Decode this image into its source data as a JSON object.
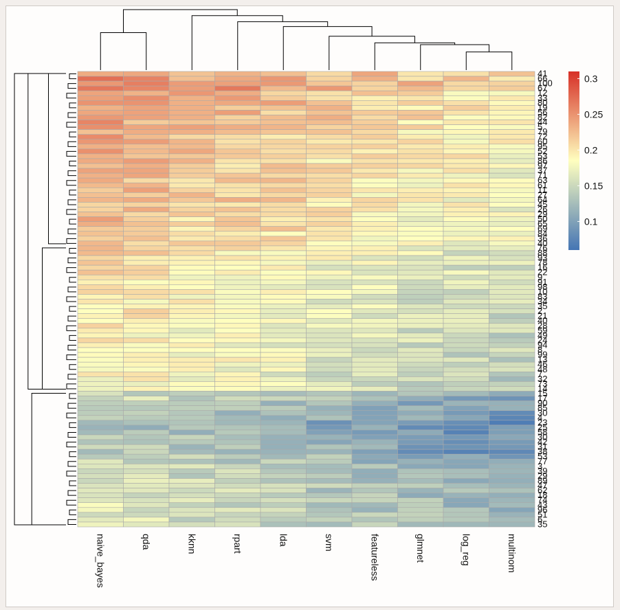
{
  "chart_data": {
    "type": "heatmap",
    "columns": [
      "naive_bayes",
      "qda",
      "kknn",
      "rpart",
      "lda",
      "svm",
      "featureless",
      "glmnet",
      "log_reg",
      "multinom"
    ],
    "rows": [
      "41",
      "66",
      "100",
      "67",
      "12",
      "33",
      "80",
      "19",
      "56",
      "82",
      "44",
      "5",
      "79",
      "72",
      "60",
      "95",
      "52",
      "53",
      "86",
      "97",
      "37",
      "71",
      "63",
      "61",
      "11",
      "27",
      "64",
      "45",
      "26",
      "29",
      "50",
      "65",
      "69",
      "84",
      "36",
      "40",
      "76",
      "88",
      "93",
      "78",
      "16",
      "22",
      "9",
      "91",
      "98",
      "10",
      "83",
      "34",
      "35",
      "2",
      "21",
      "40",
      "28",
      "59",
      "49",
      "24",
      "94",
      "8",
      "99",
      "13",
      "46",
      "48",
      "7",
      "32",
      "73",
      "14",
      "15",
      "17",
      "90",
      "85",
      "30",
      "4",
      "23",
      "25",
      "58",
      "30",
      "42",
      "31",
      "38",
      "53",
      "77",
      "3",
      "39",
      "29",
      "89",
      "47",
      "62",
      "18",
      "74",
      "43",
      "96",
      "51",
      "6",
      "35"
    ],
    "legend": {
      "ticks": [
        0.1,
        0.15,
        0.2,
        0.25,
        0.3
      ],
      "tick_labels": [
        "0.1",
        "0.15",
        "0.2",
        "0.25",
        "0.3"
      ],
      "min": 0.06,
      "max": 0.31
    },
    "colors": {
      "low": "#4575b4",
      "mid": "#ffffbf",
      "high": "#d73027",
      "grid": "#a9a9a9"
    },
    "column_base": [
      0.215,
      0.21,
      0.2,
      0.2,
      0.195,
      0.185,
      0.18,
      0.175,
      0.17,
      0.165
    ],
    "row_effect": [
      0.04,
      0.04,
      0.05,
      0.05,
      0.03,
      0.03,
      0.03,
      0.03,
      0.03,
      0.03,
      0.025,
      0.025,
      0.02,
      0.02,
      0.02,
      0.02,
      0.02,
      0.02,
      0.015,
      0.015,
      0.015,
      0.015,
      0.015,
      0.015,
      0.015,
      0.015,
      0.015,
      0.015,
      0.01,
      0.01,
      0.01,
      0.01,
      0.01,
      0.01,
      0.01,
      0.01,
      -0.005,
      -0.005,
      -0.005,
      -0.005,
      -0.01,
      -0.01,
      -0.01,
      -0.01,
      -0.015,
      -0.015,
      -0.015,
      -0.015,
      -0.015,
      -0.015,
      -0.015,
      -0.015,
      -0.015,
      -0.02,
      -0.02,
      -0.02,
      -0.02,
      -0.02,
      -0.02,
      -0.02,
      -0.02,
      -0.02,
      -0.025,
      -0.025,
      -0.025,
      -0.025,
      -0.06,
      -0.06,
      -0.07,
      -0.07,
      -0.07,
      -0.07,
      -0.08,
      -0.08,
      -0.08,
      -0.07,
      -0.07,
      -0.07,
      -0.08,
      -0.06,
      -0.06,
      -0.05,
      -0.05,
      -0.05,
      -0.05,
      -0.05,
      -0.05,
      -0.05,
      -0.05,
      -0.05,
      -0.05,
      -0.05,
      -0.05,
      -0.05
    ],
    "column_dendrogram": [
      {
        "a": 1,
        "b": 2,
        "h": 0.62
      },
      {
        "a": 9,
        "b": 10,
        "h": 0.3
      },
      {
        "a": 8,
        "b": 12,
        "h": 0.42
      },
      {
        "a": 7,
        "b": 13,
        "h": 0.45
      },
      {
        "a": 6,
        "b": 14,
        "h": 0.56
      },
      {
        "a": 5,
        "b": 15,
        "h": 0.72
      },
      {
        "a": 4,
        "b": 16,
        "h": 0.8
      },
      {
        "a": 3,
        "b": 17,
        "h": 0.9
      },
      {
        "a": 11,
        "b": 18,
        "h": 1.0
      }
    ],
    "row_dendrogram": [
      {
        "from": 0,
        "to": 36,
        "h": 0.45
      },
      {
        "from": 36,
        "to": 66,
        "h": 0.55
      },
      {
        "from": 0,
        "to": 66,
        "h": 0.78
      },
      {
        "from": 66,
        "to": 94,
        "h": 0.72
      },
      {
        "from": 0,
        "to": 94,
        "h": 1.0
      }
    ]
  }
}
